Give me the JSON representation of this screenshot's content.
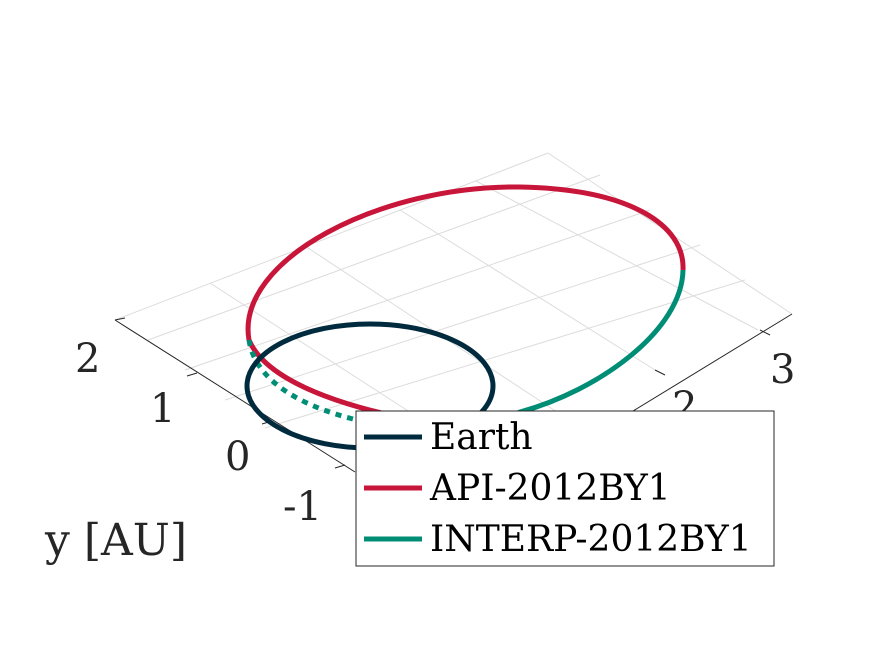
{
  "chart_data": {
    "type": "line",
    "view": "3d-perspective",
    "ylabel": "y [AU]",
    "x_ticks": [
      "2",
      "3"
    ],
    "y_ticks": [
      "2",
      "1",
      "0",
      "-1"
    ],
    "grid": true,
    "legend_placement": "bottom-right",
    "colors": {
      "earth": "#002b3e",
      "api": "#c8153a",
      "interp": "#008d76",
      "grid": "#dcdcdc",
      "axis": "#262626"
    },
    "series": [
      {
        "name": "Earth",
        "key": "earth",
        "orbit": {
          "center_x": 0,
          "center_y": 0,
          "semi_major": 1.0,
          "semi_minor": 1.0
        }
      },
      {
        "name": "API-2012BY1",
        "key": "api",
        "orbit": {
          "center_x": 1.05,
          "center_y": 1.05,
          "semi_major": 2.45,
          "semi_minor": 1.95
        }
      },
      {
        "name": "INTERP-2012BY1",
        "key": "interp",
        "orbit": {
          "center_x": 1.05,
          "center_y": 1.05,
          "semi_major": 2.45,
          "semi_minor": 1.95
        }
      }
    ]
  }
}
